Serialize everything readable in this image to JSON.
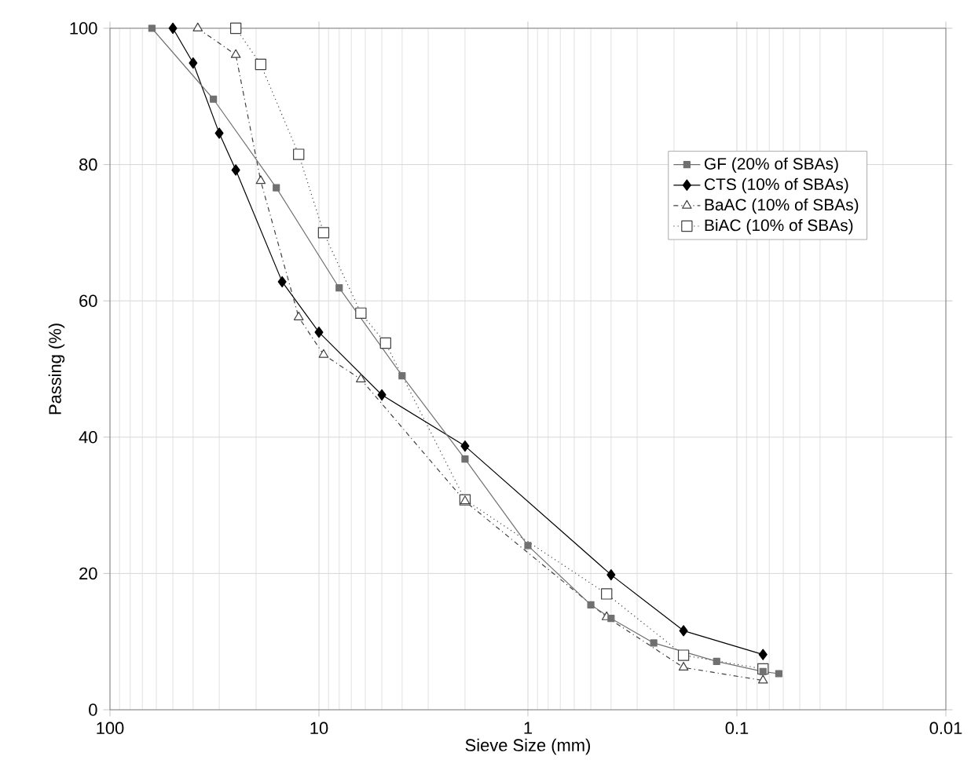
{
  "chart_data": {
    "type": "line",
    "xlabel": "Sieve Size (mm)",
    "ylabel": "Passing (%)",
    "log": "x",
    "xlim": [
      100,
      0.01
    ],
    "xticks": [
      100,
      10,
      1,
      0.1,
      0.01
    ],
    "ylim": [
      0,
      100
    ],
    "yticks": [
      0,
      20,
      40,
      60,
      80,
      100
    ],
    "grid": true,
    "legend": "top right",
    "series": [
      {
        "name": "GF (20% of SBAs)",
        "color": "#707070",
        "marker": "square",
        "line_style": "solid",
        "x": [
          63,
          32,
          16,
          8,
          4,
          2,
          1,
          0.5,
          0.4,
          0.25,
          0.125,
          0.075,
          0.063
        ],
        "values": [
          100,
          89.6,
          76.6,
          61.9,
          49.0,
          36.8,
          24.1,
          15.4,
          13.4,
          9.8,
          7.1,
          5.6,
          5.3
        ]
      },
      {
        "name": "CTS (10% of SBAs)",
        "color": "#000000",
        "marker": "diamond",
        "line_style": "solid",
        "x": [
          50,
          40,
          30,
          25,
          15,
          10,
          5,
          2,
          0.4,
          0.18,
          0.075
        ],
        "values": [
          100,
          94.9,
          84.6,
          79.2,
          62.8,
          55.4,
          46.2,
          38.7,
          19.8,
          11.6,
          8.1
        ]
      },
      {
        "name": "BaAC (10% of SBAs)",
        "color": "#404040",
        "marker": "triangle",
        "line_style": "dashdot",
        "x": [
          38,
          25,
          19,
          12.5,
          9.5,
          6.3,
          2,
          0.42,
          0.18,
          0.075
        ],
        "values": [
          100,
          96.1,
          77.6,
          57.6,
          52.1,
          48.5,
          30.6,
          13.6,
          6.2,
          4.3
        ]
      },
      {
        "name": "BiAC (10% of SBAs)",
        "color": "#404040",
        "marker": "square",
        "line_style": "dotted",
        "x": [
          25,
          19,
          12.5,
          9.5,
          6.3,
          4.8,
          2,
          0.42,
          0.18,
          0.075
        ],
        "values": [
          100,
          94.7,
          81.5,
          70.0,
          58.2,
          53.8,
          30.8,
          17.0,
          8.0,
          6.0
        ]
      }
    ]
  }
}
